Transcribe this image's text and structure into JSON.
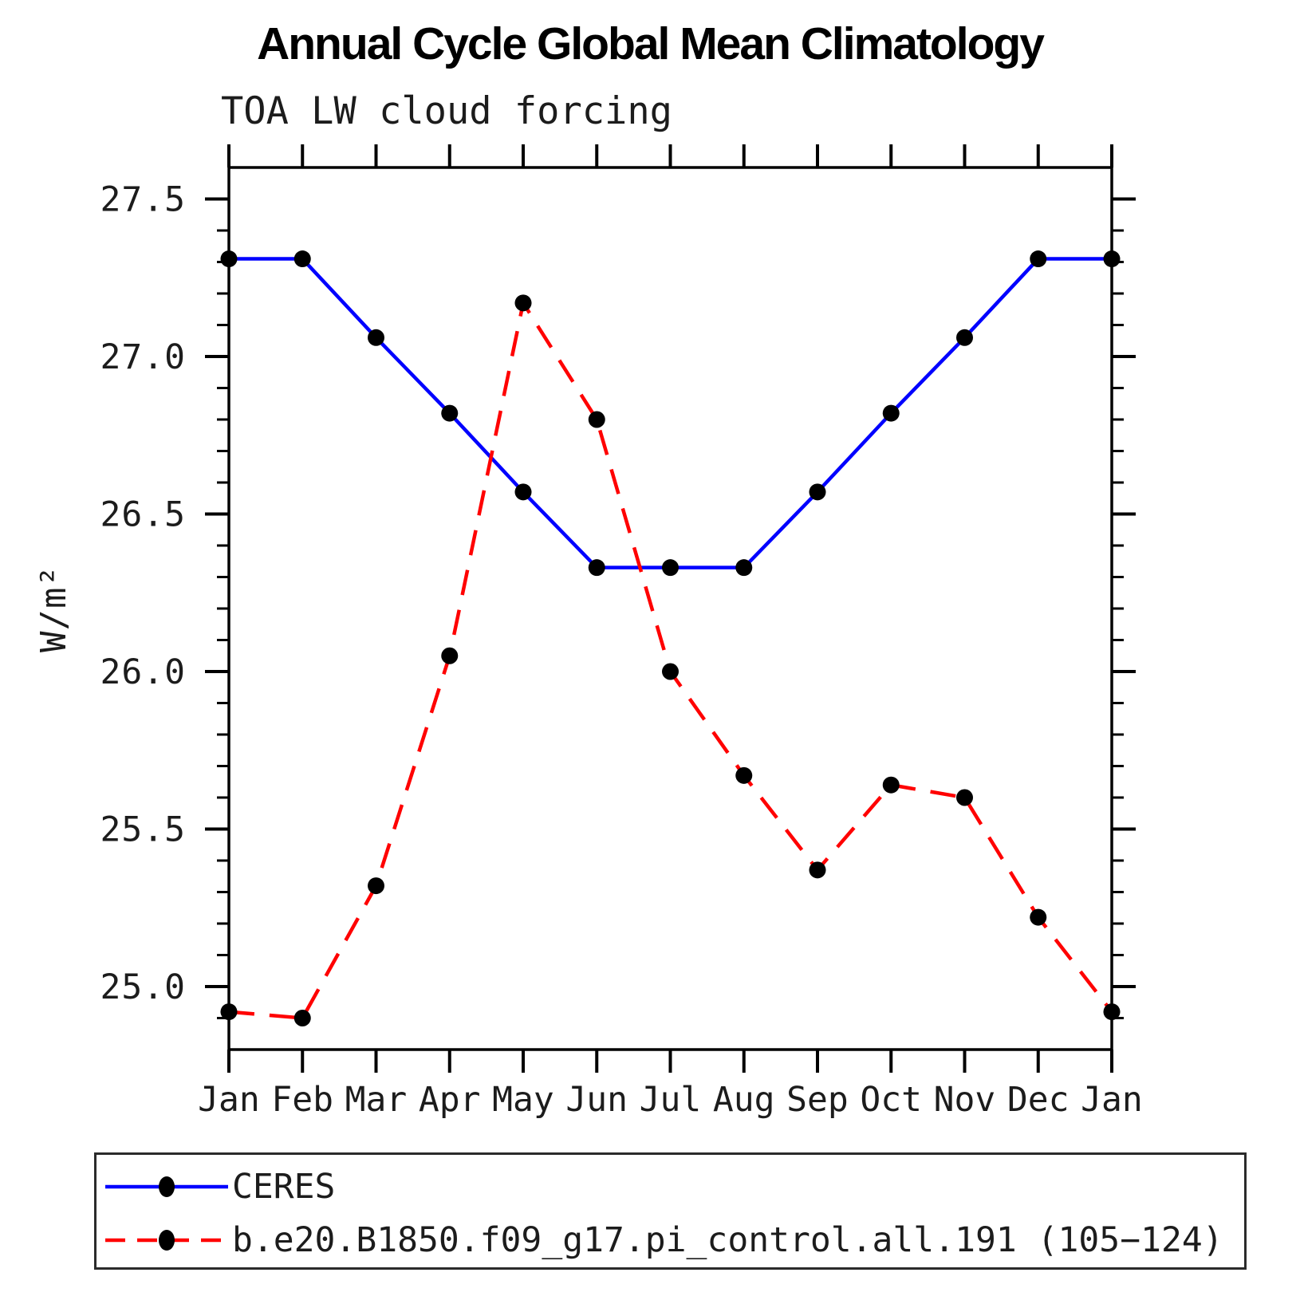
{
  "chart_data": {
    "type": "line",
    "title": "Annual Cycle Global Mean Climatology",
    "subtitle": "TOA LW cloud forcing",
    "ylabel": "W/m²",
    "x_categories": [
      "Jan",
      "Feb",
      "Mar",
      "Apr",
      "May",
      "Jun",
      "Jul",
      "Aug",
      "Sep",
      "Oct",
      "Nov",
      "Dec",
      "Jan"
    ],
    "ylim": [
      24.8,
      27.6
    ],
    "ytick_major": [
      25.0,
      25.5,
      26.0,
      26.5,
      27.0,
      27.5
    ],
    "ytick_labels": [
      "25.0",
      "25.5",
      "26.0",
      "26.5",
      "27.0",
      "27.5"
    ],
    "ytick_minor_step": 0.1,
    "grid": false,
    "legend_position": "bottom",
    "marker": {
      "shape": "circle",
      "color": "#000000"
    },
    "axis_color": "#000000",
    "series": [
      {
        "name": "CERES",
        "color": "#0000ff",
        "line_style": "solid",
        "values": [
          27.31,
          27.31,
          27.06,
          26.82,
          26.57,
          26.33,
          26.33,
          26.33,
          26.57,
          26.82,
          27.06,
          27.31,
          27.31
        ]
      },
      {
        "name": "b.e20.B1850.f09_g17.pi_control.all.191 (105−124)",
        "color": "#ff0000",
        "line_style": "dashed",
        "values": [
          24.92,
          24.9,
          25.32,
          26.05,
          27.17,
          26.8,
          26.0,
          25.67,
          25.37,
          25.64,
          25.6,
          25.22,
          24.92
        ]
      }
    ]
  }
}
